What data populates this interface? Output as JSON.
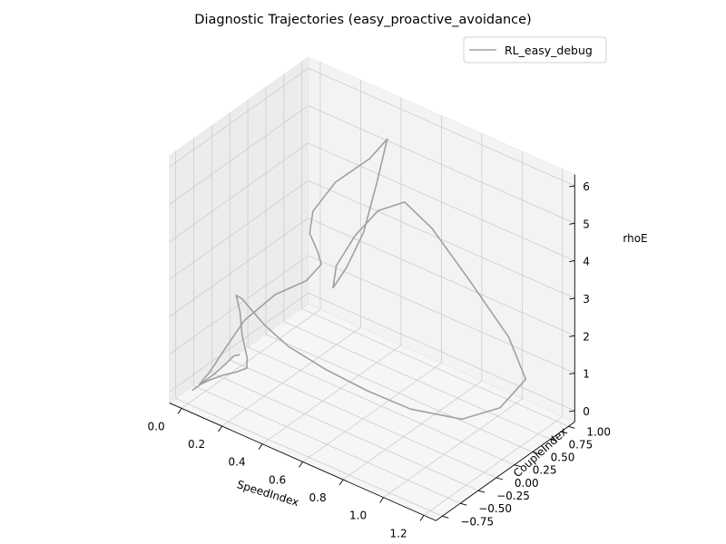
{
  "chart_data": {
    "type": "line",
    "projection": "3d",
    "title": "Diagnostic Trajectories (easy_proactive_avoidance)",
    "xlabel": "SpeedIndex",
    "ylabel": "CoupleIndex",
    "zlabel": "rhoE",
    "xlim": [
      0.0,
      1.2
    ],
    "ylim": [
      -0.75,
      1.0
    ],
    "zlim": [
      0,
      6
    ],
    "x_ticks": [
      0.0,
      0.2,
      0.4,
      0.6,
      0.8,
      1.0,
      1.2
    ],
    "y_ticks": [
      -0.75,
      -0.5,
      -0.25,
      0.0,
      0.25,
      0.5,
      0.75,
      1.0
    ],
    "z_ticks": [
      0,
      1,
      2,
      3,
      4,
      5,
      6
    ],
    "x_tick_labels": [
      "0.0",
      "0.2",
      "0.4",
      "0.6",
      "0.8",
      "1.0",
      "1.2"
    ],
    "y_tick_labels": [
      "−0.75",
      "−0.50",
      "−0.25",
      "0.00",
      "0.25",
      "0.50",
      "0.75",
      "1.00"
    ],
    "z_tick_labels": [
      "0",
      "1",
      "2",
      "3",
      "4",
      "5",
      "6"
    ],
    "grid": true,
    "legend_position": "top-right",
    "colors": {
      "series": "#a0a0a0",
      "pane": "#f2f2f2",
      "grid": "#cfcfcf"
    },
    "series": [
      {
        "name": "RL_easy_debug",
        "points": [
          [
            0.02,
            -0.74,
            0.1
          ],
          [
            0.06,
            -0.74,
            0.35
          ],
          [
            0.1,
            -0.74,
            0.55
          ],
          [
            0.16,
            -0.72,
            0.8
          ],
          [
            0.22,
            -0.7,
            1.0
          ],
          [
            0.26,
            -0.66,
            1.15
          ],
          [
            0.24,
            -0.6,
            1.3
          ],
          [
            0.18,
            -0.5,
            1.6
          ],
          [
            0.14,
            -0.42,
            2.05
          ],
          [
            0.1,
            -0.36,
            2.3
          ],
          [
            0.1,
            -0.28,
            2.1
          ],
          [
            0.2,
            -0.25,
            1.6
          ],
          [
            0.3,
            -0.2,
            1.2
          ],
          [
            0.45,
            -0.1,
            0.8
          ],
          [
            0.62,
            0.0,
            0.5
          ],
          [
            0.8,
            0.1,
            0.3
          ],
          [
            1.0,
            0.25,
            0.3
          ],
          [
            1.1,
            0.5,
            0.5
          ],
          [
            1.12,
            0.8,
            0.9
          ],
          [
            1.0,
            0.9,
            1.6
          ],
          [
            0.8,
            0.92,
            2.6
          ],
          [
            0.62,
            0.9,
            3.6
          ],
          [
            0.52,
            0.8,
            4.2
          ],
          [
            0.46,
            0.6,
            4.1
          ],
          [
            0.4,
            0.45,
            3.5
          ],
          [
            0.36,
            0.3,
            2.8
          ],
          [
            0.38,
            0.2,
            2.4
          ],
          [
            0.43,
            0.25,
            3.0
          ],
          [
            0.46,
            0.4,
            3.8
          ],
          [
            0.47,
            0.55,
            4.9
          ],
          [
            0.47,
            0.7,
            5.9
          ],
          [
            0.42,
            0.6,
            5.4
          ],
          [
            0.32,
            0.4,
            4.8
          ],
          [
            0.28,
            0.2,
            4.2
          ],
          [
            0.3,
            0.1,
            3.8
          ],
          [
            0.34,
            0.1,
            3.4
          ],
          [
            0.34,
            0.15,
            3.0
          ],
          [
            0.3,
            0.05,
            2.6
          ],
          [
            0.2,
            -0.1,
            2.2
          ],
          [
            0.12,
            -0.3,
            1.6
          ],
          [
            0.08,
            -0.5,
            0.9
          ],
          [
            0.06,
            -0.62,
            0.5
          ],
          [
            0.04,
            -0.7,
            0.25
          ],
          [
            0.05,
            -0.68,
            0.3
          ],
          [
            0.09,
            -0.64,
            0.55
          ],
          [
            0.13,
            -0.6,
            0.85
          ],
          [
            0.16,
            -0.56,
            1.1
          ],
          [
            0.18,
            -0.54,
            1.15
          ]
        ]
      }
    ]
  }
}
